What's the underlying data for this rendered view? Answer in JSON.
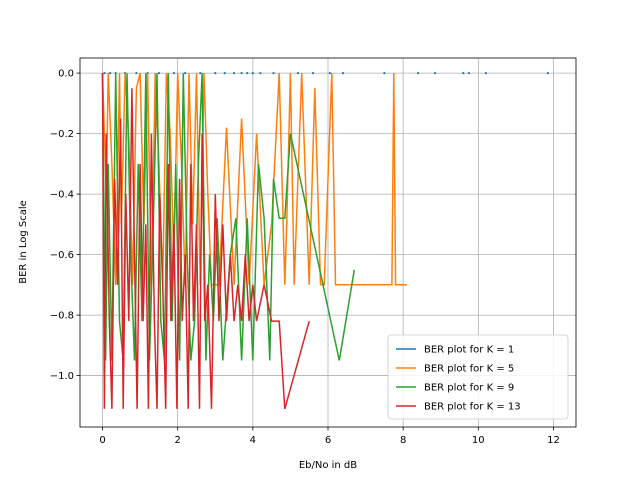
{
  "chart_data": {
    "type": "line",
    "title": "",
    "xlabel": "Eb/No in dB",
    "ylabel": "BER in Log Scale",
    "xlim": [
      -0.6,
      12.6
    ],
    "ylim": [
      -1.17,
      0.05
    ],
    "xticks": [
      0,
      2,
      4,
      6,
      8,
      10,
      12
    ],
    "yticks": [
      0.0,
      -0.2,
      -0.4,
      -0.6,
      -0.8,
      -1.0
    ],
    "grid": true,
    "legend_position": "lower-right",
    "series": [
      {
        "name": "BER plot for K = 1",
        "color": "#1f77b4",
        "x": [
          0.05,
          0.2,
          0.35,
          0.6,
          0.9,
          1.2,
          1.5,
          1.9,
          2.2,
          2.6,
          3.0,
          3.25,
          3.5,
          3.7,
          3.85,
          4.0,
          4.2,
          4.55,
          5.2,
          5.6,
          6.05,
          6.4,
          7.5,
          8.4,
          8.85,
          9.6,
          9.75,
          10.2,
          11.85
        ],
        "y": [
          0,
          0,
          0,
          0,
          0,
          0,
          0,
          0,
          0,
          0,
          0,
          0,
          0,
          0,
          0,
          0,
          0,
          0,
          0,
          0,
          0,
          0,
          0,
          0,
          0,
          0,
          0,
          0,
          0
        ]
      },
      {
        "name": "BER plot for K = 5",
        "color": "#ff7f0e",
        "x": [
          0.0,
          0.1,
          0.15,
          0.25,
          0.35,
          0.45,
          0.5,
          0.6,
          0.7,
          0.8,
          0.9,
          1.0,
          1.1,
          1.2,
          1.3,
          1.4,
          1.5,
          1.6,
          1.7,
          1.8,
          1.9,
          2.0,
          2.1,
          2.2,
          2.3,
          2.4,
          2.5,
          2.6,
          2.7,
          2.8,
          2.9,
          3.0,
          3.1,
          3.3,
          3.5,
          3.7,
          3.9,
          4.1,
          4.3,
          4.5,
          4.7,
          4.85,
          4.9,
          5.0,
          5.1,
          5.3,
          5.5,
          5.65,
          5.8,
          5.9,
          6.1,
          6.2,
          6.5,
          7.2,
          7.7,
          7.75,
          7.8,
          7.9,
          8.1
        ],
        "y": [
          0,
          -0.4,
          0,
          -0.3,
          -0.7,
          0,
          -0.5,
          0,
          -0.22,
          -0.7,
          -0.05,
          0,
          -0.5,
          0,
          -0.7,
          0,
          -0.3,
          -0.7,
          0,
          -0.2,
          -0.6,
          0,
          -0.3,
          -0.7,
          0,
          -0.5,
          0,
          -0.7,
          0,
          -0.4,
          -0.7,
          -0.7,
          -0.7,
          -0.18,
          -0.7,
          -0.15,
          -0.7,
          -0.2,
          -0.7,
          -0.5,
          0,
          -0.7,
          -0.5,
          0,
          -0.7,
          0,
          -0.7,
          -0.05,
          -0.7,
          -0.7,
          0,
          -0.7,
          -0.7,
          -0.7,
          -0.7,
          0,
          -0.7,
          -0.7,
          -0.7
        ]
      },
      {
        "name": "BER plot for K = 9",
        "color": "#2ca02c",
        "x": [
          0.0,
          0.08,
          0.15,
          0.25,
          0.35,
          0.45,
          0.55,
          0.65,
          0.75,
          0.85,
          0.95,
          1.05,
          1.15,
          1.25,
          1.35,
          1.45,
          1.55,
          1.65,
          1.75,
          1.85,
          1.95,
          2.05,
          2.15,
          2.25,
          2.35,
          2.45,
          2.55,
          2.65,
          2.75,
          2.85,
          2.95,
          3.05,
          3.2,
          3.4,
          3.55,
          3.7,
          3.85,
          4.0,
          4.15,
          4.3,
          4.45,
          4.55,
          4.7,
          4.85,
          5.0,
          6.3,
          6.7
        ],
        "y": [
          0,
          -0.95,
          -0.3,
          -0.95,
          0,
          -0.82,
          -0.95,
          0,
          -0.6,
          -0.95,
          -0.3,
          -0.82,
          0,
          -0.95,
          -0.5,
          0,
          -0.82,
          -0.95,
          0,
          -0.82,
          -0.3,
          -0.95,
          0,
          -0.6,
          -0.95,
          -0.82,
          -0.3,
          0,
          -0.95,
          -0.6,
          -0.82,
          -0.48,
          -0.95,
          -0.6,
          -0.48,
          -0.95,
          -0.48,
          -0.95,
          -0.3,
          -0.48,
          -0.95,
          -0.35,
          -0.48,
          -0.48,
          -0.2,
          -0.95,
          -0.65
        ]
      },
      {
        "name": "BER plot for K = 13",
        "color": "#d62728",
        "x": [
          0.0,
          0.05,
          0.1,
          0.18,
          0.25,
          0.32,
          0.4,
          0.48,
          0.55,
          0.62,
          0.7,
          0.78,
          0.85,
          0.92,
          1.0,
          1.08,
          1.15,
          1.22,
          1.3,
          1.38,
          1.45,
          1.52,
          1.6,
          1.68,
          1.75,
          1.82,
          1.9,
          1.98,
          2.05,
          2.12,
          2.2,
          2.28,
          2.35,
          2.42,
          2.5,
          2.58,
          2.65,
          2.72,
          2.8,
          2.9,
          3.0,
          3.1,
          3.2,
          3.3,
          3.4,
          3.5,
          3.6,
          3.7,
          3.8,
          3.9,
          4.0,
          4.1,
          4.3,
          4.5,
          4.7,
          4.85,
          5.5
        ],
        "y": [
          0,
          -1.11,
          -0.2,
          -0.82,
          -1.11,
          -0.35,
          -0.7,
          -0.15,
          -1.11,
          -0.4,
          -0.82,
          -0.05,
          -0.6,
          -1.11,
          -0.3,
          -0.82,
          -0.5,
          -1.11,
          -0.2,
          -0.82,
          -1.11,
          -0.4,
          -0.7,
          -1.11,
          -0.3,
          -0.82,
          -0.5,
          -1.11,
          -0.35,
          -0.82,
          -0.6,
          -1.11,
          -0.3,
          -0.82,
          -0.5,
          -1.11,
          -0.2,
          -0.82,
          -0.7,
          -1.11,
          -0.4,
          -0.82,
          -0.5,
          -0.82,
          -0.6,
          -0.82,
          -0.7,
          -0.82,
          -0.6,
          -0.82,
          -0.7,
          -0.82,
          -0.7,
          -0.82,
          -0.82,
          -1.11,
          -0.82
        ]
      }
    ]
  }
}
